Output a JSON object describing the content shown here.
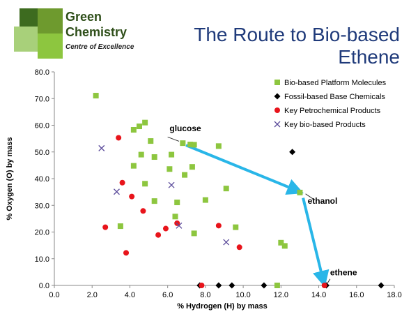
{
  "header": {
    "logo_line1": "Green",
    "logo_line2": "Chemistry",
    "logo_line3": "Centre of Excellence",
    "title_line1": "The Route to Bio-based",
    "title_line2": "Ethene"
  },
  "colors": {
    "title": "#1f3a7a",
    "bio_platform": "#8dc63f",
    "fossil": "#000000",
    "petrochemical": "#e8141b",
    "bio_products": "#5a4a9a",
    "arrow": "#29b6e8"
  },
  "chart_data": {
    "type": "scatter",
    "xlabel": "% Hydrogen (H) by mass",
    "ylabel": "% Oxygen (O) by mass",
    "xlim": [
      0,
      18
    ],
    "ylim": [
      0,
      80
    ],
    "xticks": [
      "0.0",
      "2.0",
      "4.0",
      "6.0",
      "8.0",
      "10.0",
      "12.0",
      "14.0",
      "16.0",
      "18.0"
    ],
    "yticks": [
      "0.0",
      "10.0",
      "20.0",
      "30.0",
      "40.0",
      "50.0",
      "60.0",
      "70.0",
      "80.0"
    ],
    "grid": false,
    "legend_position": "top-right",
    "series": [
      {
        "name": "Bio-based Platform Molecules",
        "marker": "square",
        "points": [
          [
            2.2,
            71.1
          ],
          [
            4.2,
            58.3
          ],
          [
            4.5,
            59.6
          ],
          [
            4.8,
            61.0
          ],
          [
            5.1,
            54.1
          ],
          [
            4.6,
            49.0
          ],
          [
            5.3,
            48.1
          ],
          [
            6.2,
            49.0
          ],
          [
            6.1,
            43.6
          ],
          [
            6.8,
            53.3
          ],
          [
            7.2,
            52.8
          ],
          [
            7.4,
            52.7
          ],
          [
            8.7,
            52.2
          ],
          [
            4.2,
            44.8
          ],
          [
            4.8,
            38.1
          ],
          [
            5.3,
            31.6
          ],
          [
            6.5,
            31.1
          ],
          [
            6.9,
            41.4
          ],
          [
            7.3,
            44.4
          ],
          [
            8.0,
            32.0
          ],
          [
            9.1,
            36.3
          ],
          [
            13.0,
            34.8
          ],
          [
            3.5,
            22.2
          ],
          [
            6.4,
            25.8
          ],
          [
            7.4,
            19.5
          ],
          [
            9.6,
            21.8
          ],
          [
            12.0,
            16.0
          ],
          [
            12.2,
            14.8
          ],
          [
            11.8,
            0.0
          ]
        ]
      },
      {
        "name": "Fossil-based Base Chemicals",
        "marker": "diamond",
        "points": [
          [
            7.7,
            0.0
          ],
          [
            8.7,
            0.0
          ],
          [
            9.4,
            0.0
          ],
          [
            11.1,
            0.0
          ],
          [
            12.6,
            50.0
          ],
          [
            14.4,
            0.0
          ],
          [
            17.3,
            0.0
          ]
        ]
      },
      {
        "name": "Key Petrochemical Products",
        "marker": "circle",
        "points": [
          [
            3.4,
            55.3
          ],
          [
            3.6,
            38.5
          ],
          [
            4.1,
            33.3
          ],
          [
            2.7,
            21.8
          ],
          [
            3.8,
            12.2
          ],
          [
            4.7,
            27.9
          ],
          [
            5.5,
            18.9
          ],
          [
            5.9,
            21.3
          ],
          [
            6.5,
            23.3
          ],
          [
            8.7,
            22.4
          ],
          [
            9.8,
            14.3
          ],
          [
            7.8,
            0.0
          ],
          [
            14.3,
            0.0
          ]
        ]
      },
      {
        "name": "Key bio-based Products",
        "marker": "cross",
        "points": [
          [
            2.5,
            51.4
          ],
          [
            3.3,
            35.1
          ],
          [
            6.2,
            37.6
          ],
          [
            6.6,
            22.4
          ],
          [
            9.1,
            16.2
          ]
        ]
      }
    ],
    "annotations": [
      {
        "text": "glucose",
        "x": 6.7,
        "y": 53.3
      },
      {
        "text": "ethanol",
        "x": 13.1,
        "y": 34.8
      },
      {
        "text": "ethene",
        "x": 14.3,
        "y": 0.0
      }
    ],
    "arrows": [
      {
        "from": [
          6.7,
          53.3
        ],
        "to": [
          13.1,
          34.8
        ]
      },
      {
        "from": [
          13.1,
          34.8
        ],
        "to": [
          14.3,
          0.0
        ]
      }
    ]
  }
}
